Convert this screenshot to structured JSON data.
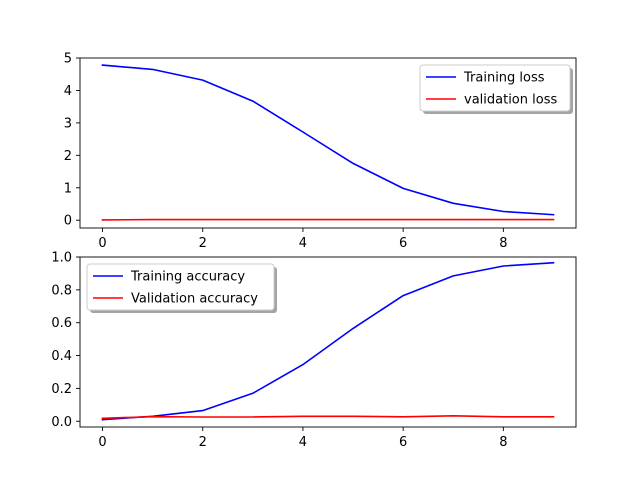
{
  "chart_data": [
    {
      "type": "line",
      "title": "",
      "xlabel": "",
      "ylabel": "",
      "xlim": [
        -0.45,
        9.45
      ],
      "ylim": [
        -0.24,
        5.0
      ],
      "x": [
        0,
        1,
        2,
        3,
        4,
        5,
        6,
        7,
        8,
        9
      ],
      "xticks": [
        0,
        2,
        4,
        6,
        8
      ],
      "yticks": [
        0,
        1,
        2,
        3,
        4,
        5
      ],
      "grid": false,
      "legend_position": "upper right",
      "series": [
        {
          "name": "Training loss",
          "color": "#0000ff",
          "values": [
            4.78,
            4.65,
            4.32,
            3.67,
            2.72,
            1.75,
            0.98,
            0.52,
            0.27,
            0.17
          ]
        },
        {
          "name": "validation loss",
          "color": "#ff0000",
          "values": [
            0.01,
            0.02,
            0.02,
            0.02,
            0.02,
            0.02,
            0.02,
            0.02,
            0.02,
            0.02
          ]
        }
      ]
    },
    {
      "type": "line",
      "title": "",
      "xlabel": "",
      "ylabel": "",
      "xlim": [
        -0.45,
        9.45
      ],
      "ylim": [
        -0.035,
        1.0
      ],
      "x": [
        0,
        1,
        2,
        3,
        4,
        5,
        6,
        7,
        8,
        9
      ],
      "xticks": [
        0,
        2,
        4,
        6,
        8
      ],
      "yticks": [
        0.0,
        0.2,
        0.4,
        0.6,
        0.8,
        1.0
      ],
      "grid": false,
      "legend_position": "upper left",
      "series": [
        {
          "name": "Training accuracy",
          "color": "#0000ff",
          "values": [
            0.01,
            0.03,
            0.065,
            0.17,
            0.345,
            0.565,
            0.765,
            0.885,
            0.945,
            0.965
          ]
        },
        {
          "name": "Validation accuracy",
          "color": "#ff0000",
          "values": [
            0.018,
            0.028,
            0.026,
            0.026,
            0.03,
            0.03,
            0.027,
            0.033,
            0.027,
            0.027
          ]
        }
      ]
    }
  ]
}
